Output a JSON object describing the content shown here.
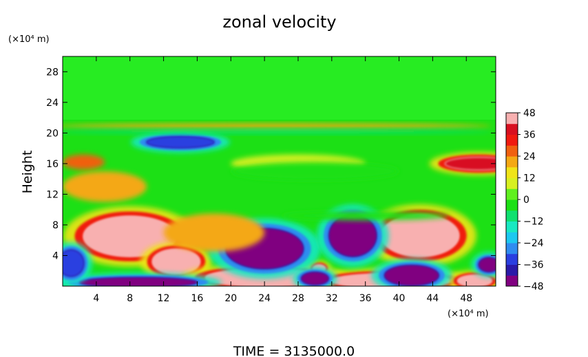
{
  "chart_data": {
    "type": "heatmap",
    "title": "zonal velocity",
    "ylabel": "Height",
    "y_unit": "(×10⁴ m)",
    "x_unit": "(×10⁴ m)",
    "footer": "TIME  =  3135000.0",
    "x_ticks": [
      4,
      8,
      12,
      16,
      20,
      24,
      28,
      32,
      36,
      40,
      44,
      48
    ],
    "y_ticks": [
      4,
      8,
      12,
      16,
      20,
      24,
      28
    ],
    "xlim": [
      0,
      51.5
    ],
    "ylim": [
      0,
      30
    ],
    "colorbar": {
      "ticks": [
        48,
        36,
        24,
        12,
        0,
        -12,
        -24,
        -36,
        -48
      ],
      "range": [
        -48,
        48
      ],
      "colors": [
        "#800080",
        "#2a1aa8",
        "#2a3fe0",
        "#2f8cf0",
        "#1cc8f0",
        "#19e8c2",
        "#10e070",
        "#1ce015",
        "#60f020",
        "#d8f020",
        "#f0e418",
        "#f4a814",
        "#f06010",
        "#f01a10",
        "#d81020",
        "#f8b0b0"
      ]
    },
    "features": [
      {
        "x": 8,
        "y": 6.5,
        "rx": 5.5,
        "ry": 2.6,
        "value": 48
      },
      {
        "x": 13.5,
        "y": 3.2,
        "rx": 2.8,
        "ry": 1.6,
        "value": 48
      },
      {
        "x": 24,
        "y": 1.1,
        "rx": 7,
        "ry": 1.1,
        "value": 48
      },
      {
        "x": 39,
        "y": 0.7,
        "rx": 7,
        "ry": 0.9,
        "value": 48
      },
      {
        "x": 49,
        "y": 0.7,
        "rx": 2,
        "ry": 0.7,
        "value": 48
      },
      {
        "x": 42.5,
        "y": 6.6,
        "rx": 4.6,
        "ry": 2.7,
        "value": 48
      },
      {
        "x": 30.5,
        "y": 2.3,
        "rx": 0.7,
        "ry": 0.45,
        "value": 48
      },
      {
        "x": 24,
        "y": 4.9,
        "rx": 4.6,
        "ry": 2.6,
        "value": -48
      },
      {
        "x": 34.5,
        "y": 6.6,
        "rx": 2.8,
        "ry": 2.7,
        "value": -48
      },
      {
        "x": 14,
        "y": 18.8,
        "rx": 4,
        "ry": 0.7,
        "value": -36
      },
      {
        "x": 9,
        "y": 0.5,
        "rx": 7,
        "ry": 0.6,
        "value": -48
      },
      {
        "x": 30,
        "y": 1.0,
        "rx": 1.6,
        "ry": 0.8,
        "value": -48
      },
      {
        "x": 41.5,
        "y": 1.4,
        "rx": 3.2,
        "ry": 1.3,
        "value": -48
      },
      {
        "x": 50.7,
        "y": 2.8,
        "rx": 1.2,
        "ry": 0.9,
        "value": -48
      },
      {
        "x": 1,
        "y": 3,
        "rx": 1.5,
        "ry": 1.7,
        "value": -36
      },
      {
        "x": 49.5,
        "y": 16,
        "rx": 4,
        "ry": 0.8,
        "value": 36
      },
      {
        "x": 2.5,
        "y": 16.2,
        "rx": 2.5,
        "ry": 1,
        "value": 24
      },
      {
        "x": 18,
        "y": 7,
        "rx": 6,
        "ry": 2.5,
        "value": 18
      },
      {
        "x": 5,
        "y": 13,
        "rx": 5,
        "ry": 2,
        "value": 18
      },
      {
        "x": 28,
        "y": 16,
        "rx": 8,
        "ry": 1.2,
        "value": 10
      },
      {
        "x": 25,
        "y": 20.9,
        "rx": 26,
        "ry": 0.35,
        "value": 20
      },
      {
        "x": 25,
        "y": 20.2,
        "rx": 26,
        "ry": 0.3,
        "value": -12
      },
      {
        "x": 30,
        "y": 15,
        "rx": 10,
        "ry": 1.2,
        "value": -6
      },
      {
        "x": 36,
        "y": 9.2,
        "rx": 10,
        "ry": 0.6,
        "value": -6
      }
    ]
  }
}
